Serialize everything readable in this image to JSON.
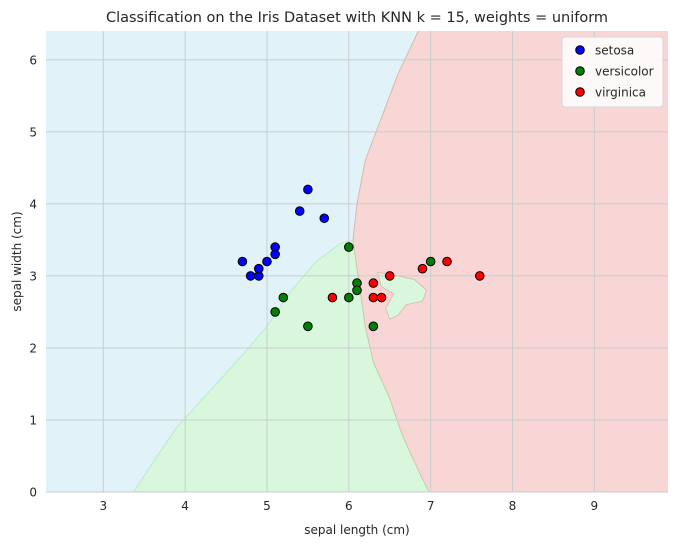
{
  "chart_data": {
    "type": "scatter",
    "title": "Classification on the Iris Dataset with KNN k = 15, weights = uniform",
    "xlabel": "sepal length (cm)",
    "ylabel": "sepal width (cm)",
    "xlim": [
      2.3,
      9.9
    ],
    "ylim": [
      0,
      6.4
    ],
    "xticks": [
      3,
      4,
      5,
      6,
      7,
      8,
      9
    ],
    "yticks": [
      0,
      1,
      2,
      3,
      4,
      5,
      6
    ],
    "grid": true,
    "legend": {
      "placement": "top-right"
    },
    "series": [
      {
        "name": "setosa",
        "color": "#0000ff",
        "region_color": "#e1f3f8",
        "points": [
          [
            4.7,
            3.2
          ],
          [
            4.8,
            3.0
          ],
          [
            4.9,
            3.0
          ],
          [
            4.9,
            3.1
          ],
          [
            5.0,
            3.2
          ],
          [
            5.1,
            3.3
          ],
          [
            5.1,
            3.4
          ],
          [
            5.4,
            3.9
          ],
          [
            5.5,
            4.2
          ],
          [
            5.7,
            3.8
          ]
        ]
      },
      {
        "name": "versicolor",
        "color": "#008000",
        "region_color": "#d9f7dc",
        "points": [
          [
            5.1,
            2.5
          ],
          [
            5.2,
            2.7
          ],
          [
            5.5,
            2.3
          ],
          [
            6.0,
            3.4
          ],
          [
            6.0,
            2.7
          ],
          [
            6.1,
            2.9
          ],
          [
            6.1,
            2.8
          ],
          [
            6.3,
            2.3
          ],
          [
            7.0,
            3.2
          ]
        ]
      },
      {
        "name": "virginica",
        "color": "#ff0000",
        "region_color": "#f9d6d6",
        "points": [
          [
            5.8,
            2.7
          ],
          [
            6.3,
            2.9
          ],
          [
            6.3,
            2.7
          ],
          [
            6.4,
            2.7
          ],
          [
            6.5,
            3.0
          ],
          [
            6.9,
            3.1
          ],
          [
            7.2,
            3.2
          ],
          [
            7.6,
            3.0
          ]
        ]
      }
    ],
    "decision_regions": {
      "setosa_boundary": [
        [
          3.37,
          0
        ],
        [
          3.6,
          0.4
        ],
        [
          3.9,
          0.9
        ],
        [
          4.3,
          1.4
        ],
        [
          4.7,
          1.9
        ],
        [
          5.0,
          2.3
        ],
        [
          5.3,
          2.8
        ],
        [
          5.6,
          3.2
        ],
        [
          5.9,
          3.45
        ],
        [
          6.05,
          3.5
        ],
        [
          6.1,
          4.0
        ],
        [
          6.2,
          4.6
        ],
        [
          6.4,
          5.2
        ],
        [
          6.6,
          5.8
        ],
        [
          6.85,
          6.4
        ]
      ],
      "virginica_boundary": [
        [
          6.05,
          3.5
        ],
        [
          6.1,
          3.1
        ],
        [
          6.15,
          2.7
        ],
        [
          6.2,
          2.3
        ],
        [
          6.3,
          1.8
        ],
        [
          6.5,
          1.3
        ],
        [
          6.65,
          0.8
        ],
        [
          6.85,
          0.3
        ],
        [
          6.98,
          0
        ]
      ],
      "versicolor_island": [
        [
          6.35,
          3.05
        ],
        [
          6.6,
          3.0
        ],
        [
          6.8,
          2.95
        ],
        [
          6.95,
          2.8
        ],
        [
          6.9,
          2.65
        ],
        [
          6.7,
          2.6
        ],
        [
          6.6,
          2.45
        ],
        [
          6.5,
          2.4
        ],
        [
          6.45,
          2.55
        ],
        [
          6.55,
          2.75
        ],
        [
          6.4,
          2.85
        ]
      ]
    }
  }
}
